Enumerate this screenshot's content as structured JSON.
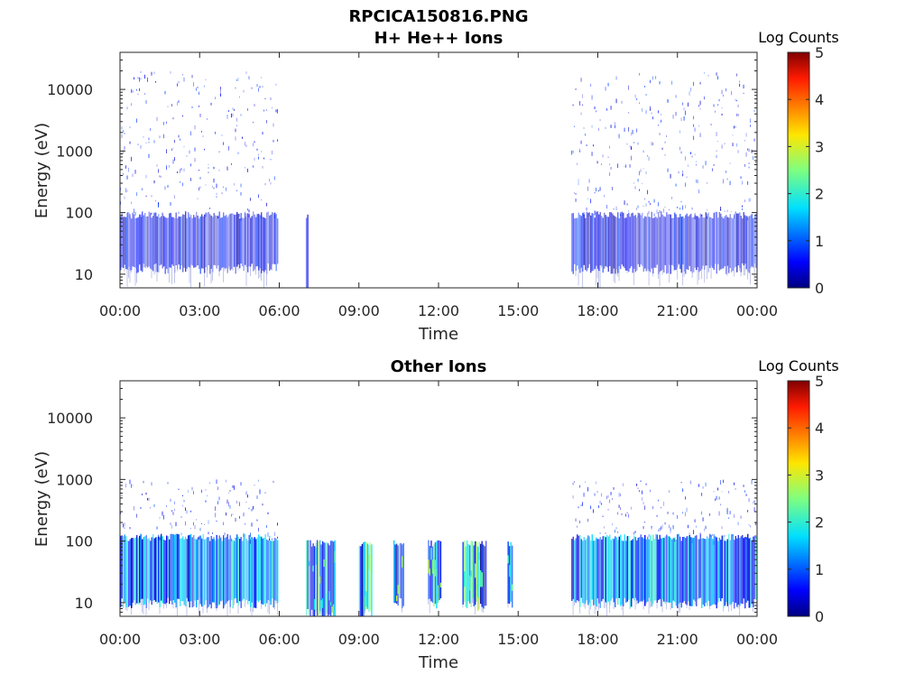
{
  "figure_title": "RPCICA150816.PNG",
  "chart_data": [
    {
      "type": "heatmap",
      "title": "H+ He++ Ions",
      "xlabel": "Time",
      "ylabel": "Energy (eV)",
      "x_ticks": [
        "00:00",
        "03:00",
        "06:00",
        "09:00",
        "12:00",
        "15:00",
        "18:00",
        "21:00",
        "00:00"
      ],
      "xlim_hours": [
        0,
        24
      ],
      "y_scale": "log",
      "y_ticks": [
        "10",
        "100",
        "1000",
        "10000"
      ],
      "ylim": [
        6,
        40000
      ],
      "colorbar": {
        "label": "Log Counts",
        "range": [
          0,
          5
        ],
        "ticks": [
          "0",
          "1",
          "2",
          "3",
          "4",
          "5"
        ],
        "colormap": "jet"
      },
      "data_intervals": [
        {
          "start_hour": 0.0,
          "end_hour": 5.95,
          "level": "low",
          "band_eV": [
            15,
            80
          ],
          "sparse_max_eV": 20000
        },
        {
          "start_hour": 7.0,
          "end_hour": 7.1,
          "level": "low",
          "band_eV": [
            6,
            80
          ],
          "sparse_max_eV": 80
        },
        {
          "start_hour": 17.0,
          "end_hour": 24.0,
          "level": "low",
          "band_eV": [
            15,
            80
          ],
          "sparse_max_eV": 20000
        }
      ]
    },
    {
      "type": "heatmap",
      "title": "Other Ions",
      "xlabel": "Time",
      "ylabel": "Energy (eV)",
      "x_ticks": [
        "00:00",
        "03:00",
        "06:00",
        "09:00",
        "12:00",
        "15:00",
        "18:00",
        "21:00",
        "00:00"
      ],
      "xlim_hours": [
        0,
        24
      ],
      "y_scale": "log",
      "y_ticks": [
        "10",
        "100",
        "1000",
        "10000"
      ],
      "ylim": [
        6,
        40000
      ],
      "colorbar": {
        "label": "Log Counts",
        "range": [
          0,
          5
        ],
        "ticks": [
          "0",
          "1",
          "2",
          "3",
          "4",
          "5"
        ],
        "colormap": "jet"
      },
      "data_intervals": [
        {
          "start_hour": 0.0,
          "end_hour": 5.95,
          "level": "medium",
          "band_eV": [
            12,
            100
          ],
          "sparse_max_eV": 1000
        },
        {
          "start_hour": 7.0,
          "end_hour": 8.1,
          "level": "high",
          "band_eV": [
            8,
            80
          ],
          "sparse_max_eV": 80
        },
        {
          "start_hour": 9.0,
          "end_hour": 9.5,
          "level": "high",
          "band_eV": [
            8,
            80
          ],
          "sparse_max_eV": 80
        },
        {
          "start_hour": 10.3,
          "end_hour": 10.7,
          "level": "high",
          "band_eV": [
            12,
            80
          ],
          "sparse_max_eV": 80
        },
        {
          "start_hour": 11.6,
          "end_hour": 12.1,
          "level": "high",
          "band_eV": [
            12,
            80
          ],
          "sparse_max_eV": 80
        },
        {
          "start_hour": 12.9,
          "end_hour": 13.8,
          "level": "high",
          "band_eV": [
            12,
            80
          ],
          "sparse_max_eV": 80
        },
        {
          "start_hour": 14.6,
          "end_hour": 14.8,
          "level": "high",
          "band_eV": [
            12,
            80
          ],
          "sparse_max_eV": 80
        },
        {
          "start_hour": 17.0,
          "end_hour": 24.0,
          "level": "medium",
          "band_eV": [
            12,
            100
          ],
          "sparse_max_eV": 1000
        }
      ]
    }
  ]
}
